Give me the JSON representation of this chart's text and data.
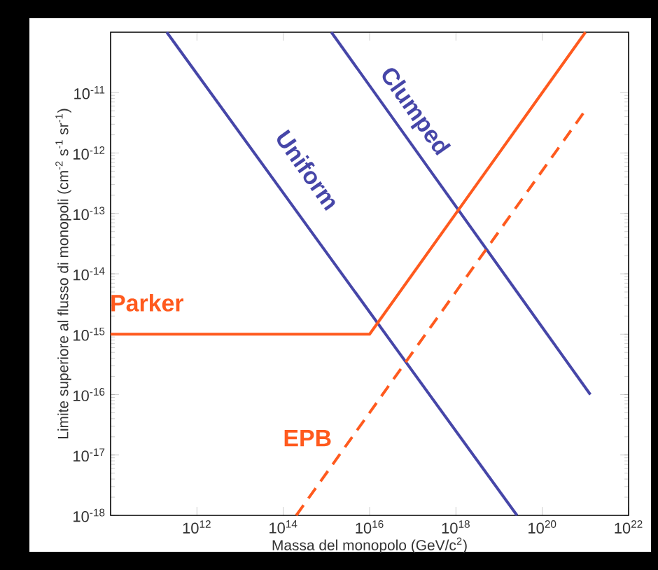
{
  "chart_data": {
    "type": "line",
    "log": "xy",
    "xlabel": "Massa del monopolo (GeV/c$^{2}$)",
    "ylabel": "Limite superiore al flusso di monopoli (cm$^{-2}$ s$^{-1}$ sr$^{-1}$)",
    "xlim": [
      10000000000.0,
      1e+22
    ],
    "ylim": [
      1e-18,
      1e-10
    ],
    "xticks": [
      {
        "value": 1000000000000.0,
        "label": "10$^{12}$"
      },
      {
        "value": 100000000000000.0,
        "label": "10$^{14}$"
      },
      {
        "value": 1e+16,
        "label": "10$^{16}$"
      },
      {
        "value": 1e+18,
        "label": "10$^{18}$"
      },
      {
        "value": 1e+20,
        "label": "10$^{20}$"
      },
      {
        "value": 1e+22,
        "label": "10$^{22}$"
      }
    ],
    "yticks": [
      {
        "value": 1e-18,
        "label": "10$^{-18}$"
      },
      {
        "value": 1e-17,
        "label": "10$^{-17}$"
      },
      {
        "value": 1e-16,
        "label": "10$^{-16}$"
      },
      {
        "value": 1e-15,
        "label": "10$^{-15}$"
      },
      {
        "value": 1e-14,
        "label": "10$^{-14}$"
      },
      {
        "value": 1e-13,
        "label": "10$^{-13}$"
      },
      {
        "value": 1e-12,
        "label": "10$^{-12}$"
      },
      {
        "value": 1e-11,
        "label": "10$^{-11}$"
      }
    ],
    "series": [
      {
        "name": "Uniform",
        "color": "#4646a8",
        "x": [
          200000000000.0,
          2.6e+19
        ],
        "values": [
          1e-10,
          1e-18
        ]
      },
      {
        "name": "Clumped",
        "color": "#4646a8",
        "x": [
          1300000000000000.0,
          1.3e+21
        ],
        "values": [
          1e-10,
          1e-16
        ]
      },
      {
        "name": "Parker",
        "color": "#ff5a1e",
        "x": [
          10000000000.0,
          1e+16,
          1e+21
        ],
        "values": [
          1e-15,
          1e-15,
          1e-10
        ]
      },
      {
        "name": "EPB",
        "color": "#ff5a1e",
        "line_style": "dashed",
        "x": [
          200000000000000.0,
          9e+20
        ],
        "values": [
          1e-18,
          4.6e-12
        ]
      }
    ]
  }
}
